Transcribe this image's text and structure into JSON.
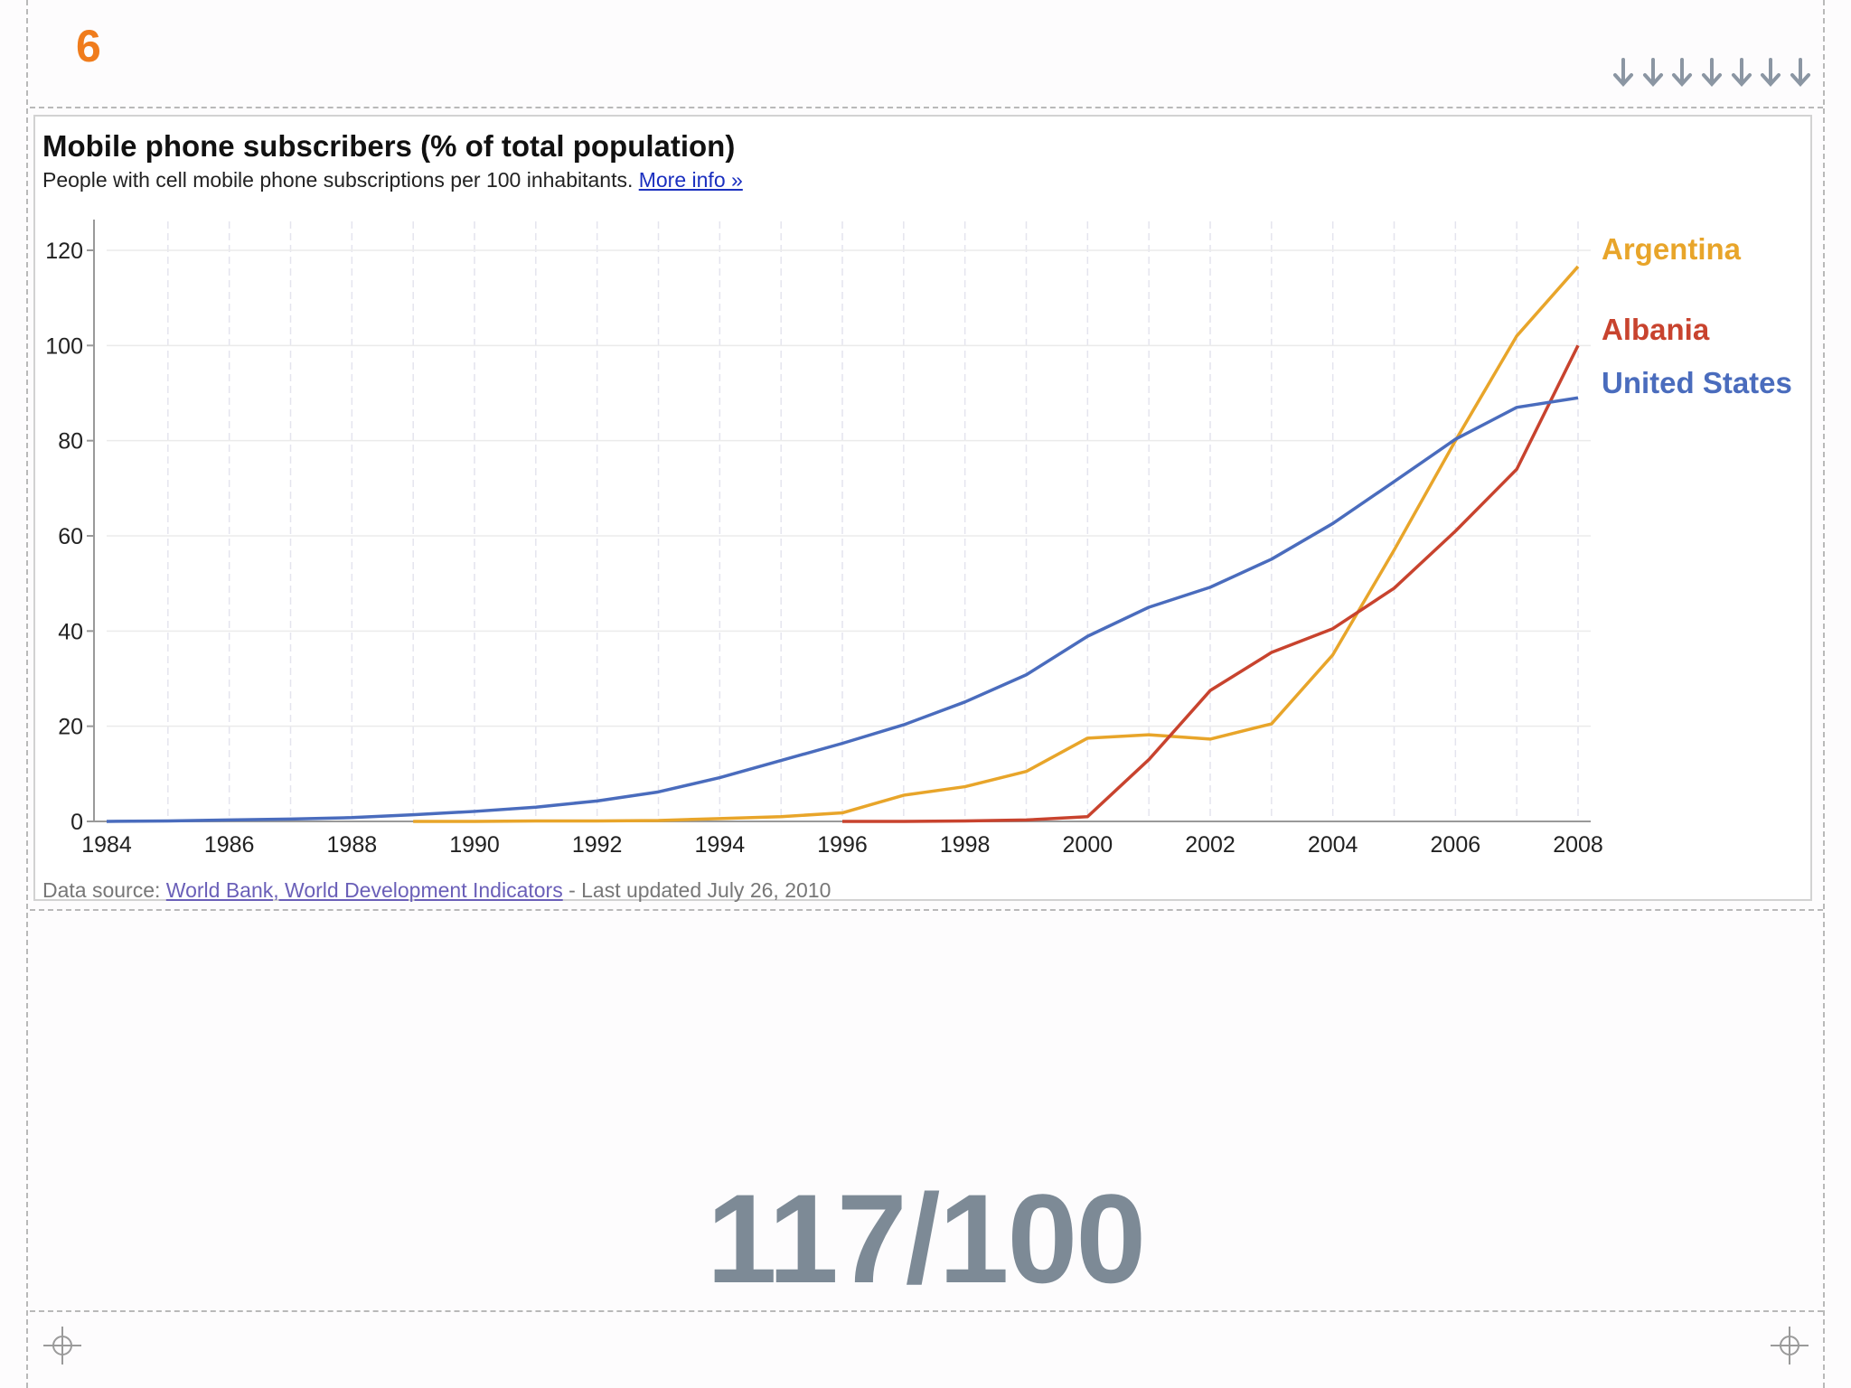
{
  "slide": {
    "number": "6",
    "big_stat": "117/100"
  },
  "chart_data": {
    "type": "line",
    "title": "Mobile phone subscribers (% of total population)",
    "subtitle": "People with cell mobile phone subscriptions per 100 inhabitants.",
    "more_info_link": "More info »",
    "source_prefix": "Data source: ",
    "source_link": "World Bank, World Development Indicators",
    "source_suffix": " - Last updated July 26, 2010",
    "xlabel": "",
    "ylabel": "",
    "xlim": [
      1984,
      2008
    ],
    "ylim": [
      0,
      120
    ],
    "x_ticks": [
      1984,
      1986,
      1988,
      1990,
      1992,
      1994,
      1996,
      1998,
      2000,
      2002,
      2004,
      2006,
      2008
    ],
    "y_ticks": [
      0,
      20,
      40,
      60,
      80,
      100,
      120
    ],
    "grid": true,
    "legend": "right",
    "series": [
      {
        "name": "Argentina",
        "color": "#e8a52a",
        "x": [
          1989,
          1990,
          1991,
          1992,
          1993,
          1994,
          1995,
          1996,
          1997,
          1998,
          1999,
          2000,
          2001,
          2002,
          2003,
          2004,
          2005,
          2006,
          2007,
          2008
        ],
        "values": [
          0.0,
          0.0,
          0.1,
          0.1,
          0.2,
          0.6,
          1.0,
          1.8,
          5.5,
          7.3,
          10.5,
          17.5,
          18.2,
          17.3,
          20.5,
          35.0,
          57.0,
          80.0,
          102.0,
          116.6
        ]
      },
      {
        "name": "Albania",
        "color": "#c8432e",
        "x": [
          1996,
          1997,
          1998,
          1999,
          2000,
          2001,
          2002,
          2003,
          2004,
          2005,
          2006,
          2007,
          2008
        ],
        "values": [
          0.0,
          0.0,
          0.1,
          0.3,
          1.0,
          13.0,
          27.5,
          35.5,
          40.5,
          49.0,
          61.0,
          74.0,
          100.0
        ]
      },
      {
        "name": "United States",
        "color": "#4a6cbd",
        "x": [
          1984,
          1985,
          1986,
          1987,
          1988,
          1989,
          1990,
          1991,
          1992,
          1993,
          1994,
          1995,
          1996,
          1997,
          1998,
          1999,
          2000,
          2001,
          2002,
          2003,
          2004,
          2005,
          2006,
          2007,
          2008
        ],
        "values": [
          0.0,
          0.1,
          0.3,
          0.5,
          0.8,
          1.4,
          2.1,
          3.0,
          4.3,
          6.2,
          9.2,
          12.8,
          16.4,
          20.3,
          25.1,
          30.8,
          38.9,
          45.0,
          49.2,
          55.1,
          62.6,
          71.4,
          80.3,
          87.0,
          89.0
        ]
      }
    ]
  }
}
